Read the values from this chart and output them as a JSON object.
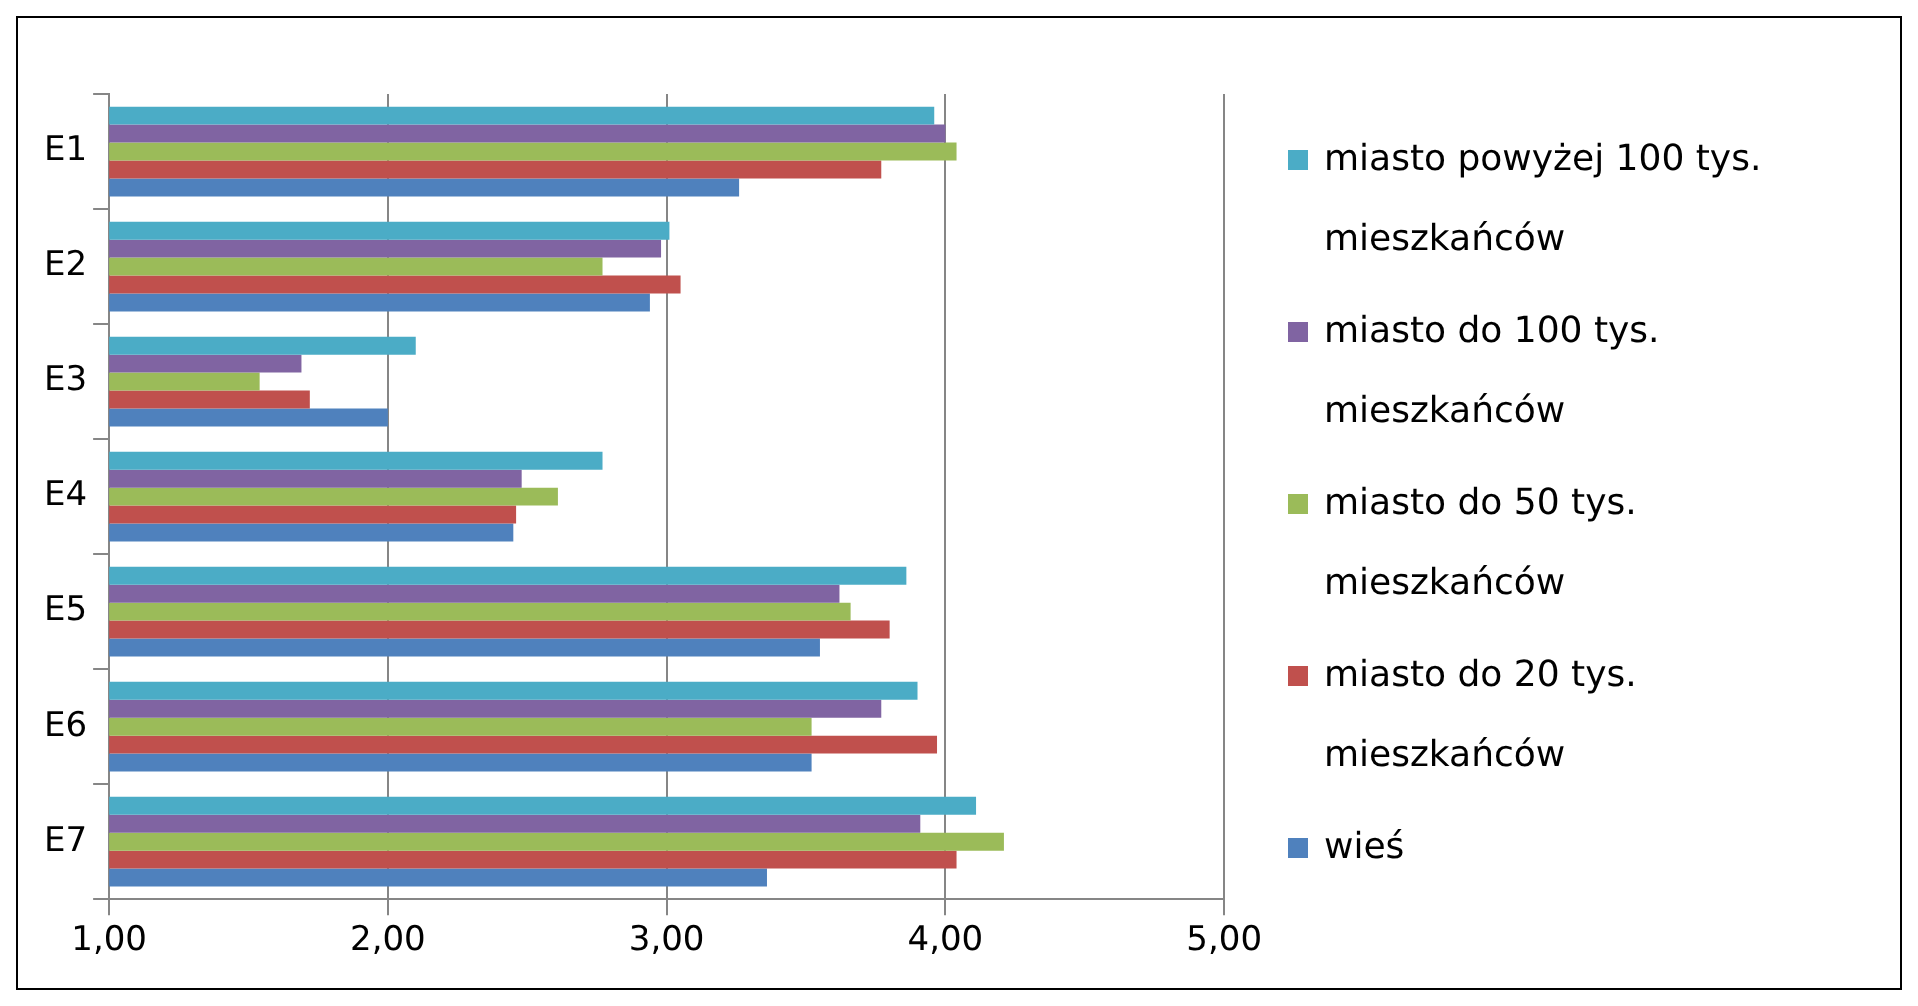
{
  "chart_data": {
    "type": "bar",
    "orientation": "horizontal",
    "categories": [
      "E1",
      "E2",
      "E3",
      "E4",
      "E5",
      "E6",
      "E7"
    ],
    "series": [
      {
        "name": "miasto powyżej 100 tys. mieszkańców",
        "color": "#4bacc6",
        "values": [
          3.96,
          3.01,
          2.1,
          2.77,
          3.86,
          3.9,
          4.11
        ]
      },
      {
        "name": "miasto do 100 tys. mieszkańców",
        "color": "#8064a2",
        "values": [
          4.0,
          2.98,
          1.69,
          2.48,
          3.62,
          3.77,
          3.91
        ]
      },
      {
        "name": "miasto do 50 tys. mieszkańców",
        "color": "#9bbb59",
        "values": [
          4.04,
          2.77,
          1.54,
          2.61,
          3.66,
          3.52,
          4.21
        ]
      },
      {
        "name": "miasto do 20 tys. mieszkańców",
        "color": "#c0504d",
        "values": [
          3.77,
          3.05,
          1.72,
          2.46,
          3.8,
          3.97,
          4.04
        ]
      },
      {
        "name": "wieś",
        "color": "#4f81bd",
        "values": [
          3.26,
          2.94,
          2.0,
          2.45,
          3.55,
          3.52,
          3.36
        ]
      }
    ],
    "xlim": [
      1,
      5
    ],
    "xticks": [
      {
        "value": 1,
        "label": "1,00"
      },
      {
        "value": 2,
        "label": "2,00"
      },
      {
        "value": 3,
        "label": "3,00"
      },
      {
        "value": 4,
        "label": "4,00"
      },
      {
        "value": 5,
        "label": "5,00"
      }
    ],
    "grid": "x",
    "legend": "right"
  }
}
